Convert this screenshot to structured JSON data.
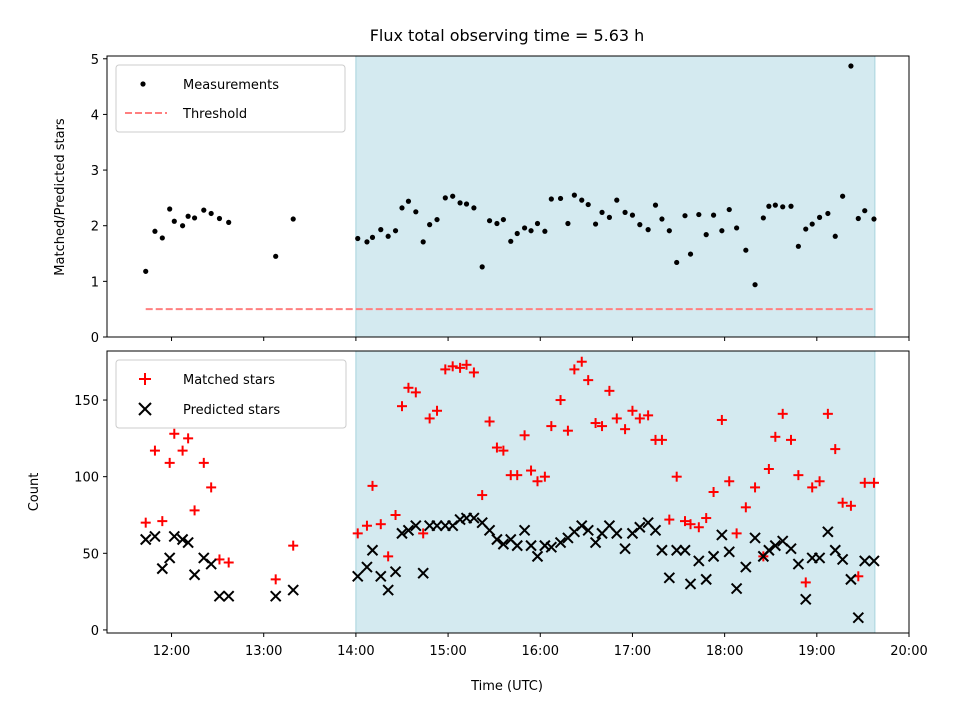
{
  "chart_data": [
    {
      "type": "scatter",
      "title": "Flux total observing time = 5.63 h",
      "ylabel": "Matched/Predicted stars",
      "xlabel": "",
      "x_unit": "hours UTC",
      "xlim": [
        11.3,
        20.0
      ],
      "ylim": [
        0,
        5.05
      ],
      "yticks": [
        0,
        1,
        2,
        3,
        4,
        5
      ],
      "shaded_region": [
        14.0,
        19.63
      ],
      "shade_color": "#d4eaf0",
      "legend_position": "top-left",
      "threshold": 0.5,
      "series": [
        {
          "name": "Measurements",
          "marker": "dot",
          "color": "#000000",
          "x": [
            11.72,
            11.82,
            11.9,
            11.98,
            12.03,
            12.12,
            12.18,
            12.25,
            12.35,
            12.43,
            12.52,
            12.62,
            13.13,
            13.32,
            14.02,
            14.12,
            14.18,
            14.27,
            14.35,
            14.43,
            14.5,
            14.57,
            14.65,
            14.73,
            14.8,
            14.88,
            14.97,
            15.05,
            15.13,
            15.2,
            15.28,
            15.37,
            15.45,
            15.53,
            15.6,
            15.68,
            15.75,
            15.83,
            15.9,
            15.97,
            16.05,
            16.12,
            16.22,
            16.3,
            16.37,
            16.45,
            16.52,
            16.6,
            16.67,
            16.75,
            16.83,
            16.92,
            17.0,
            17.08,
            17.17,
            17.25,
            17.32,
            17.4,
            17.48,
            17.57,
            17.63,
            17.72,
            17.8,
            17.88,
            17.97,
            18.05,
            18.13,
            18.23,
            18.33,
            18.42,
            18.48,
            18.55,
            18.63,
            18.72,
            18.8,
            18.88,
            18.95,
            19.03,
            19.12,
            19.2,
            19.28,
            19.37,
            19.45,
            19.52,
            19.62
          ],
          "y": [
            1.18,
            1.9,
            1.78,
            2.3,
            2.08,
            2.0,
            2.17,
            2.14,
            2.28,
            2.22,
            2.13,
            2.06,
            1.45,
            2.12,
            1.77,
            1.71,
            1.79,
            1.93,
            1.81,
            1.91,
            2.32,
            2.44,
            2.25,
            1.71,
            2.02,
            2.11,
            2.5,
            2.53,
            2.41,
            2.39,
            2.32,
            1.26,
            2.09,
            2.04,
            2.11,
            1.72,
            1.86,
            1.96,
            1.91,
            2.04,
            1.9,
            2.48,
            2.49,
            2.04,
            2.55,
            2.46,
            2.38,
            2.03,
            2.24,
            2.15,
            2.46,
            2.24,
            2.19,
            2.02,
            1.93,
            2.37,
            2.12,
            1.91,
            1.34,
            2.18,
            1.49,
            2.2,
            1.84,
            2.19,
            1.91,
            2.29,
            1.96,
            1.56,
            0.94,
            2.14,
            2.35,
            2.37,
            2.34,
            2.35,
            1.63,
            1.94,
            2.03,
            2.15,
            2.22,
            1.81,
            2.53,
            4.87,
            2.13,
            2.27,
            2.12
          ]
        },
        {
          "name": "Threshold",
          "marker": "dashed-line",
          "color": "#ff7f7f",
          "x": [
            11.72,
            19.62
          ],
          "y": [
            0.5,
            0.5
          ]
        }
      ]
    },
    {
      "type": "scatter",
      "title": "",
      "ylabel": "Count",
      "xlabel": "Time (UTC)",
      "x_unit": "hours UTC",
      "xlim": [
        11.3,
        20.0
      ],
      "ylim": [
        -2,
        182
      ],
      "yticks": [
        0,
        50,
        100,
        150
      ],
      "xticks": [
        12,
        13,
        14,
        15,
        16,
        17,
        18,
        19,
        20
      ],
      "xtick_labels": [
        "12:00",
        "13:00",
        "14:00",
        "15:00",
        "16:00",
        "17:00",
        "18:00",
        "19:00",
        "20:00"
      ],
      "shaded_region": [
        14.0,
        19.63
      ],
      "shade_color": "#d4eaf0",
      "legend_position": "top-left",
      "series": [
        {
          "name": "Matched stars",
          "marker": "plus",
          "color": "#ff0000",
          "x": [
            11.72,
            11.82,
            11.9,
            11.98,
            12.03,
            12.12,
            12.18,
            12.25,
            12.35,
            12.43,
            12.52,
            12.62,
            13.13,
            13.32,
            14.02,
            14.12,
            14.18,
            14.27,
            14.35,
            14.43,
            14.5,
            14.57,
            14.65,
            14.73,
            14.8,
            14.88,
            14.97,
            15.05,
            15.13,
            15.2,
            15.28,
            15.37,
            15.45,
            15.53,
            15.6,
            15.68,
            15.75,
            15.83,
            15.9,
            15.97,
            16.05,
            16.12,
            16.22,
            16.3,
            16.37,
            16.45,
            16.52,
            16.6,
            16.67,
            16.75,
            16.83,
            16.92,
            17.0,
            17.08,
            17.17,
            17.25,
            17.32,
            17.4,
            17.48,
            17.57,
            17.63,
            17.72,
            17.8,
            17.88,
            17.97,
            18.05,
            18.13,
            18.23,
            18.33,
            18.42,
            18.48,
            18.55,
            18.63,
            18.72,
            18.8,
            18.88,
            18.95,
            19.03,
            19.12,
            19.2,
            19.28,
            19.37,
            19.45,
            19.52,
            19.62
          ],
          "y": [
            70,
            117,
            71,
            109,
            128,
            117,
            125,
            78,
            109,
            93,
            46,
            44,
            33,
            55,
            63,
            68,
            94,
            69,
            48,
            75,
            146,
            158,
            155,
            63,
            138,
            143,
            170,
            172,
            171,
            173,
            168,
            88,
            136,
            119,
            117,
            101,
            101,
            127,
            104,
            97,
            100,
            133,
            150,
            130,
            170,
            175,
            163,
            135,
            133,
            156,
            138,
            131,
            143,
            138,
            140,
            124,
            124,
            72,
            100,
            71,
            69,
            67,
            73,
            90,
            137,
            97,
            63,
            80,
            93,
            48,
            105,
            126,
            141,
            124,
            101,
            31,
            93,
            97,
            141,
            118,
            83,
            81,
            35,
            96,
            96
          ]
        },
        {
          "name": "Predicted stars",
          "marker": "x",
          "color": "#000000",
          "x": [
            11.72,
            11.82,
            11.9,
            11.98,
            12.03,
            12.12,
            12.18,
            12.25,
            12.35,
            12.43,
            12.52,
            12.62,
            13.13,
            13.32,
            14.02,
            14.12,
            14.18,
            14.27,
            14.35,
            14.43,
            14.5,
            14.57,
            14.65,
            14.73,
            14.8,
            14.88,
            14.97,
            15.05,
            15.13,
            15.2,
            15.28,
            15.37,
            15.45,
            15.53,
            15.6,
            15.68,
            15.75,
            15.83,
            15.9,
            15.97,
            16.05,
            16.12,
            16.22,
            16.3,
            16.37,
            16.45,
            16.52,
            16.6,
            16.67,
            16.75,
            16.83,
            16.92,
            17.0,
            17.08,
            17.17,
            17.25,
            17.32,
            17.4,
            17.48,
            17.57,
            17.63,
            17.72,
            17.8,
            17.88,
            17.97,
            18.05,
            18.13,
            18.23,
            18.33,
            18.42,
            18.48,
            18.55,
            18.63,
            18.72,
            18.8,
            18.88,
            18.95,
            19.03,
            19.12,
            19.2,
            19.28,
            19.37,
            19.45,
            19.52,
            19.62
          ],
          "y": [
            59,
            61,
            40,
            47,
            61,
            59,
            57,
            36,
            47,
            43,
            22,
            22,
            22,
            26,
            35,
            41,
            52,
            35,
            26,
            38,
            63,
            65,
            68,
            37,
            68,
            68,
            68,
            68,
            72,
            73,
            73,
            70,
            65,
            59,
            56,
            59,
            55,
            65,
            55,
            48,
            55,
            54,
            57,
            60,
            64,
            68,
            65,
            57,
            63,
            68,
            63,
            53,
            63,
            67,
            70,
            65,
            52,
            34,
            52,
            52,
            30,
            45,
            33,
            48,
            62,
            51,
            27,
            41,
            60,
            48,
            52,
            55,
            58,
            53,
            43,
            20,
            47,
            47,
            64,
            52,
            46,
            33,
            8,
            45,
            45
          ]
        }
      ]
    }
  ]
}
